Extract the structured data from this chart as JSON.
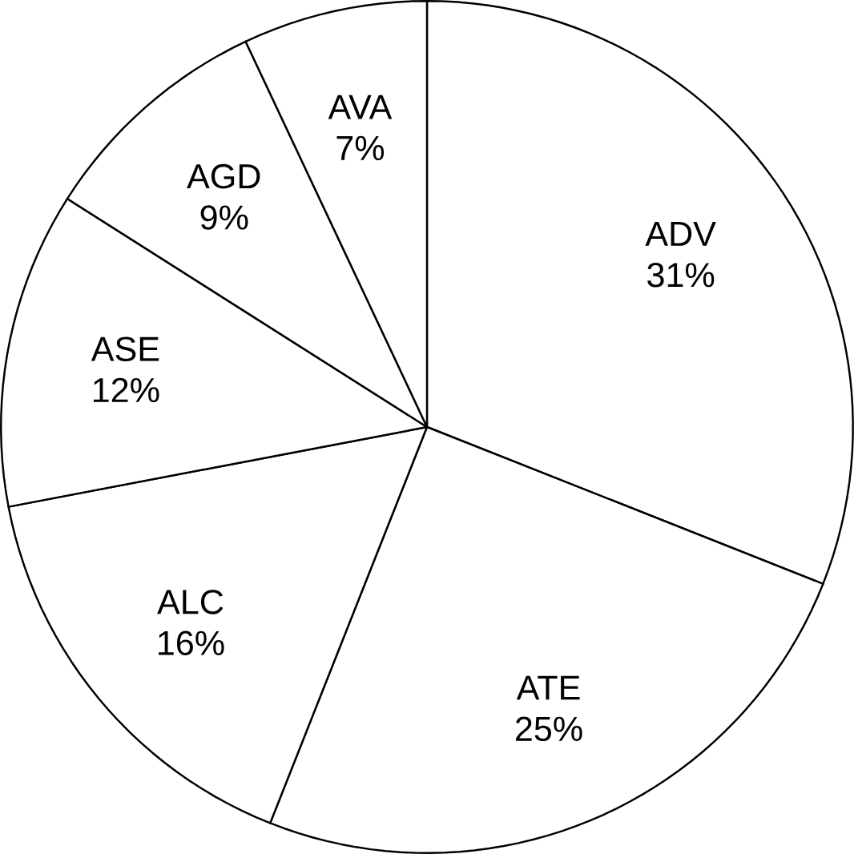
{
  "chart_data": {
    "type": "pie",
    "categories": [
      "ADV",
      "ATE",
      "ALC",
      "ASE",
      "AGD",
      "AVA"
    ],
    "values": [
      31,
      25,
      16,
      12,
      9,
      7
    ],
    "value_labels": [
      "31%",
      "25%",
      "16%",
      "12%",
      "9%",
      "7%"
    ],
    "colors": [
      "#ffffff",
      "#ffffff",
      "#ffffff",
      "#ffffff",
      "#ffffff",
      "#ffffff"
    ]
  }
}
